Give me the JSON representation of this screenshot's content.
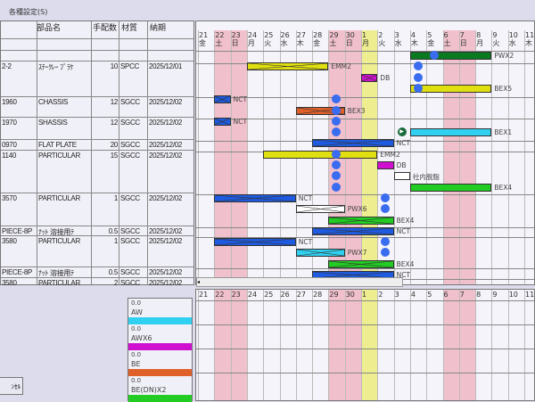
{
  "title": "各種設定(S)",
  "table": {
    "headers": [
      "部品名",
      "手配数",
      "材質",
      "納期"
    ],
    "rows": [
      {
        "code": "2-2",
        "name": "ｽﾃｰｸﾚｰ ﾌﾞﾗｹ",
        "qty": "10",
        "material": "SPCC",
        "due": "2025/12/01"
      },
      {
        "code": "1960",
        "name": "CHASSIS",
        "qty": "12",
        "material": "SGCC",
        "due": "2025/12/02"
      },
      {
        "code": "1970",
        "name": "SHASSIS",
        "qty": "12",
        "material": "SGCC",
        "due": "2025/12/02"
      },
      {
        "code": "0970",
        "name": "FLAT PLATE",
        "qty": "20",
        "material": "SGCC",
        "due": "2025/12/02"
      },
      {
        "code": "1140",
        "name": "PARTICULAR",
        "qty": "15",
        "material": "SGCC",
        "due": "2025/12/02"
      },
      {
        "code": "3570",
        "name": "PARTICULAR",
        "qty": "1",
        "material": "SGCC",
        "due": "2025/12/02"
      },
      {
        "code": "PIECE-8P",
        "name": "ﾅｯﾄ 溶接用ﾃ",
        "qty": "0.5",
        "material": "SGCC",
        "due": "2025/12/02"
      },
      {
        "code": "3580",
        "name": "PARTICULAR",
        "qty": "1",
        "material": "SGCC",
        "due": "2025/12/02"
      },
      {
        "code": "PIECE-8P",
        "name": "ﾅｯﾄ 溶接用ﾃ",
        "qty": "0.5",
        "material": "SGCC",
        "due": "2025/12/02"
      },
      {
        "code": "3580",
        "name": "PARTICULAR",
        "qty": "2",
        "material": "SGCC",
        "due": "2025/12/02"
      }
    ]
  },
  "days": [
    {
      "d": "21",
      "w": "金",
      "t": ""
    },
    {
      "d": "22",
      "w": "土",
      "t": "holiday"
    },
    {
      "d": "23",
      "w": "日",
      "t": "holiday"
    },
    {
      "d": "24",
      "w": "月",
      "t": ""
    },
    {
      "d": "25",
      "w": "火",
      "t": ""
    },
    {
      "d": "26",
      "w": "水",
      "t": ""
    },
    {
      "d": "27",
      "w": "木",
      "t": ""
    },
    {
      "d": "28",
      "w": "金",
      "t": ""
    },
    {
      "d": "29",
      "w": "土",
      "t": "holiday"
    },
    {
      "d": "30",
      "w": "日",
      "t": "holiday"
    },
    {
      "d": "1",
      "w": "月",
      "t": "today"
    },
    {
      "d": "2",
      "w": "火",
      "t": ""
    },
    {
      "d": "3",
      "w": "水",
      "t": ""
    },
    {
      "d": "4",
      "w": "木",
      "t": ""
    },
    {
      "d": "5",
      "w": "金",
      "t": ""
    },
    {
      "d": "6",
      "w": "土",
      "t": "holiday"
    },
    {
      "d": "7",
      "w": "日",
      "t": "holiday"
    },
    {
      "d": "8",
      "w": "月",
      "t": ""
    },
    {
      "d": "9",
      "w": "火",
      "t": ""
    },
    {
      "d": "10",
      "w": "水",
      "t": ""
    },
    {
      "d": "11",
      "w": "木",
      "t": ""
    }
  ],
  "colors": {
    "holiday": "#f0c0cc",
    "today": "#eeee90",
    "NCT": "#1e5be0",
    "EMM2": "#e0e010",
    "DB": "#d010d0",
    "BEX5": "#e0e010",
    "BEX3": "#e0602a",
    "BEX1": "#30d0f0",
    "BEX4": "#22cc22",
    "PWX2": "#0a7a20",
    "PWX6": "#ffffff",
    "PWX7": "#30d0f0",
    "社内脱脂": "#ffffff"
  },
  "tasks": [
    {
      "lane": 0,
      "label": "PWX2",
      "start": "4",
      "end": "8",
      "crossed": false,
      "dot": "5"
    },
    {
      "lane": 1,
      "label": "EMM2",
      "start": "24",
      "end": "28",
      "crossed": true,
      "dot": "4"
    },
    {
      "lane": 2,
      "label": "DB",
      "start": "1",
      "end": "1",
      "crossed": true,
      "dot": "4"
    },
    {
      "lane": 3,
      "label": "BEX5",
      "start": "4",
      "end": "8",
      "crossed": false,
      "dot": "4"
    },
    {
      "lane": 4,
      "label": "NCT",
      "start": "22",
      "end": "22",
      "crossed": true,
      "dot": "29"
    },
    {
      "lane": 5,
      "label": "BEX3",
      "start": "27",
      "end": "29",
      "crossed": true,
      "dot": "29"
    },
    {
      "lane": 6,
      "label": "NCT",
      "start": "22",
      "end": "22",
      "crossed": true,
      "dot": "29"
    },
    {
      "lane": 7,
      "label": "BEX1",
      "start": "4",
      "end": "8",
      "crossed": false,
      "dot": "29",
      "play": "3"
    },
    {
      "lane": 8,
      "label": "NCT",
      "start": "28",
      "end": "2",
      "crossed": true
    },
    {
      "lane": 9,
      "label": "EMM2",
      "start": "25",
      "end": "1",
      "crossed": false,
      "dot": "29"
    },
    {
      "lane": 10,
      "label": "DB",
      "start": "2",
      "end": "2",
      "crossed": false,
      "dot": "29"
    },
    {
      "lane": 11,
      "label": "社内脱脂",
      "start": "3",
      "end": "3",
      "crossed": false,
      "dot": "29"
    },
    {
      "lane": 12,
      "label": "BEX4",
      "start": "4",
      "end": "8",
      "crossed": false,
      "dot": "29"
    },
    {
      "lane": 13,
      "label": "NCT",
      "start": "22",
      "end": "26",
      "crossed": true,
      "dot": "2"
    },
    {
      "lane": 14,
      "label": "PWX6",
      "start": "27",
      "end": "29",
      "crossed": true,
      "dot": "2"
    },
    {
      "lane": 15,
      "label": "BEX4",
      "start": "29",
      "end": "2",
      "crossed": true
    },
    {
      "lane": 16,
      "label": "NCT",
      "start": "28",
      "end": "2",
      "crossed": true
    },
    {
      "lane": 17,
      "label": "NCT",
      "start": "22",
      "end": "26",
      "crossed": true,
      "dot": "2"
    },
    {
      "lane": 18,
      "label": "PWX7",
      "start": "27",
      "end": "29",
      "crossed": true,
      "dot": "2"
    },
    {
      "lane": 19,
      "label": "BEX4",
      "start": "29",
      "end": "2",
      "crossed": true
    },
    {
      "lane": 20,
      "label": "NCT",
      "start": "28",
      "end": "2",
      "crossed": true
    }
  ],
  "legend": [
    {
      "value": "0.0",
      "name": "AW",
      "color": "#30d0f0"
    },
    {
      "value": "0.0",
      "name": "AWX6",
      "color": "#d010d0"
    },
    {
      "value": "0.0",
      "name": "BE",
      "color": "#e0602a"
    },
    {
      "value": "0.0",
      "name": "BE(DN)X2",
      "color": "#22cc22"
    }
  ],
  "cancel_label": "ﾝｾﾙ",
  "scroll_left": "◂"
}
